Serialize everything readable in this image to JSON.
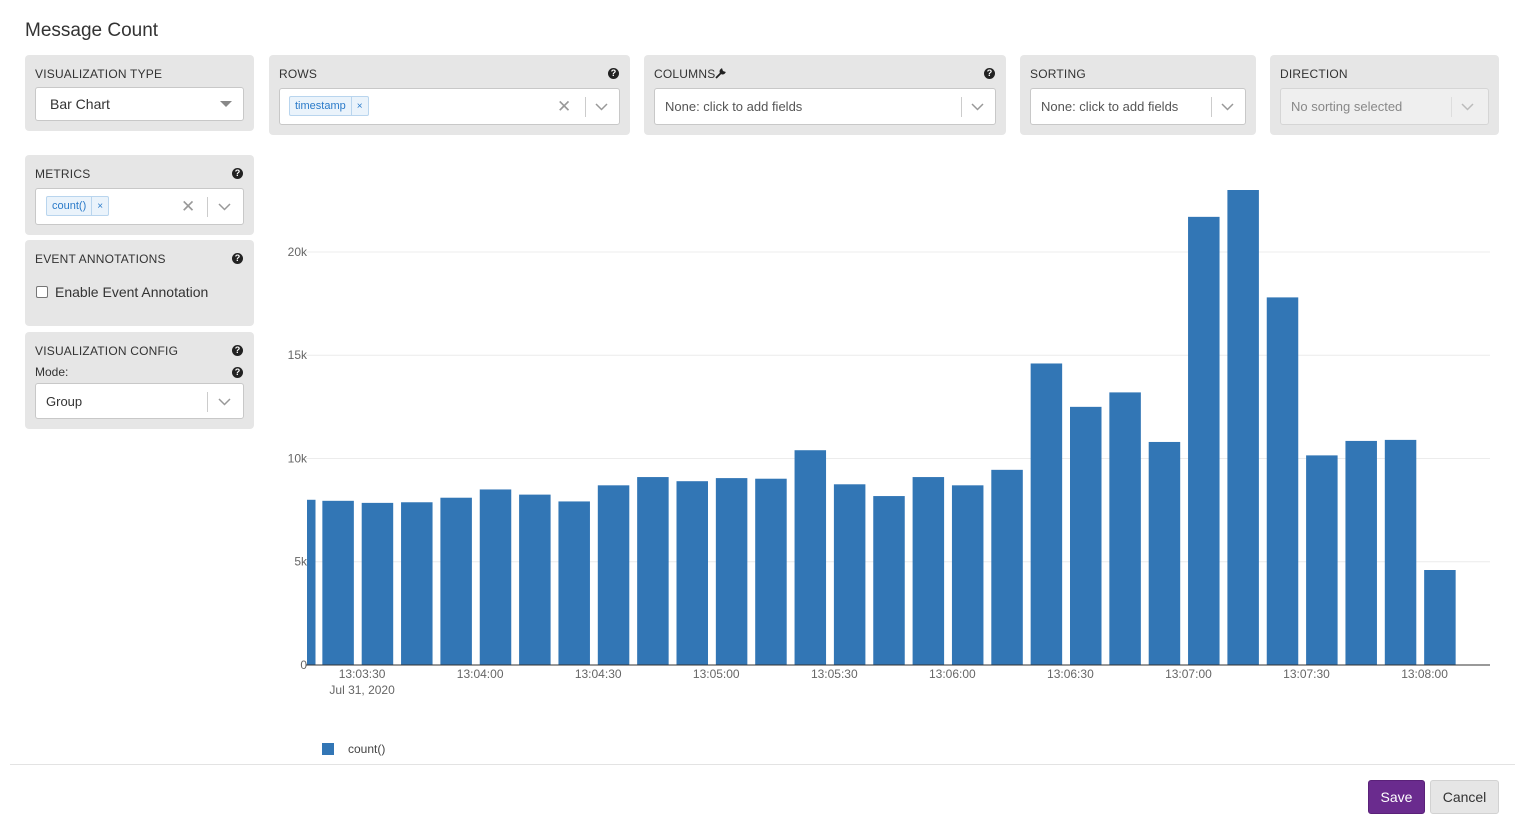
{
  "title": "Message Count",
  "controls": {
    "viz_type": {
      "label": "VISUALIZATION TYPE",
      "value": "Bar Chart"
    },
    "rows": {
      "label": "ROWS",
      "tag": "timestamp",
      "tag_remove": "×",
      "clear": "✕"
    },
    "columns": {
      "label": "COLUMNS",
      "placeholder": "None: click to add fields"
    },
    "sorting": {
      "label": "SORTING",
      "placeholder": "None: click to add fields"
    },
    "direction": {
      "label": "DIRECTION",
      "placeholder": "No sorting selected"
    },
    "metrics": {
      "label": "METRICS",
      "tag": "count()",
      "tag_remove": "×",
      "clear": "✕"
    },
    "event_annotations": {
      "label": "EVENT ANNOTATIONS",
      "checkbox_label": "Enable Event Annotation",
      "checked": false
    },
    "viz_config": {
      "label": "VISUALIZATION CONFIG",
      "mode_label": "Mode:",
      "mode_value": "Group"
    },
    "help_icon": "?"
  },
  "legend": {
    "label": "count()"
  },
  "buttons": {
    "save": "Save",
    "cancel": "Cancel"
  },
  "colors": {
    "bar": "#3276b5",
    "save": "#6a2b8e",
    "panel": "#e6e6e6"
  },
  "chart_data": {
    "type": "bar",
    "ylim": [
      0,
      23000
    ],
    "yticks": [
      0,
      5000,
      10000,
      15000,
      20000
    ],
    "ytick_labels": [
      "0",
      "5k",
      "10k",
      "15k",
      "20k"
    ],
    "x": [
      "13:03:20",
      "13:03:30",
      "13:03:40",
      "13:03:50",
      "13:04:00",
      "13:04:10",
      "13:04:20",
      "13:04:30",
      "13:04:40",
      "13:04:50",
      "13:05:00",
      "13:05:10",
      "13:05:20",
      "13:05:30",
      "13:05:40",
      "13:05:50",
      "13:06:00",
      "13:06:10",
      "13:06:20",
      "13:06:30",
      "13:06:40",
      "13:06:50",
      "13:07:00",
      "13:07:10",
      "13:07:20",
      "13:07:30",
      "13:07:40",
      "13:07:50",
      "13:08:00",
      "13:08:10"
    ],
    "series": [
      {
        "name": "count()",
        "values": [
          8000,
          7950,
          7850,
          7880,
          8100,
          8500,
          8250,
          7920,
          8700,
          9100,
          8900,
          9050,
          9020,
          10400,
          8750,
          8180,
          9100,
          8700,
          9450,
          14600,
          12500,
          13200,
          10800,
          21700,
          23000,
          17800,
          10150,
          10850,
          10900,
          4600
        ]
      }
    ],
    "xtick_labels": [
      "13:03:30",
      "13:04:00",
      "13:04:30",
      "13:05:00",
      "13:05:30",
      "13:06:00",
      "13:06:30",
      "13:07:00",
      "13:07:30",
      "13:08:00"
    ],
    "xtick_values": [
      "13:03:30",
      "13:04:00",
      "13:04:30",
      "13:05:00",
      "13:05:30",
      "13:06:00",
      "13:06:30",
      "13:07:00",
      "13:07:30",
      "13:08:00"
    ],
    "date_label": "Jul 31, 2020",
    "grid": true,
    "legend_position": "bottom-left"
  }
}
